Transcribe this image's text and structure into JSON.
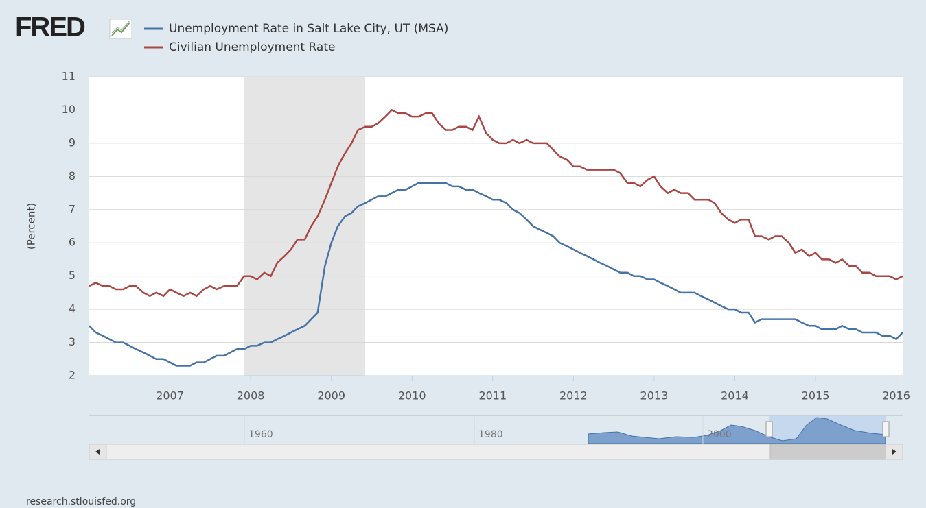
{
  "logo": "FRED",
  "source": "research.stlouisfed.org",
  "navigator": {
    "ticks": [
      1960,
      1980,
      2000
    ]
  },
  "chart_data": {
    "type": "line",
    "ylabel": "(Percent)",
    "x": [
      2006,
      2006.08,
      2006.17,
      2006.25,
      2006.33,
      2006.42,
      2006.5,
      2006.58,
      2006.67,
      2006.75,
      2006.83,
      2006.92,
      2007,
      2007.08,
      2007.17,
      2007.25,
      2007.33,
      2007.42,
      2007.5,
      2007.58,
      2007.67,
      2007.75,
      2007.83,
      2007.92,
      2008,
      2008.08,
      2008.17,
      2008.25,
      2008.33,
      2008.42,
      2008.5,
      2008.58,
      2008.67,
      2008.75,
      2008.83,
      2008.92,
      2009,
      2009.08,
      2009.17,
      2009.25,
      2009.33,
      2009.42,
      2009.5,
      2009.58,
      2009.67,
      2009.75,
      2009.83,
      2009.92,
      2010,
      2010.08,
      2010.17,
      2010.25,
      2010.33,
      2010.42,
      2010.5,
      2010.58,
      2010.67,
      2010.75,
      2010.83,
      2010.92,
      2011,
      2011.08,
      2011.17,
      2011.25,
      2011.33,
      2011.42,
      2011.5,
      2011.58,
      2011.67,
      2011.75,
      2011.83,
      2011.92,
      2012,
      2012.08,
      2012.17,
      2012.25,
      2012.33,
      2012.42,
      2012.5,
      2012.58,
      2012.67,
      2012.75,
      2012.83,
      2012.92,
      2013,
      2013.08,
      2013.17,
      2013.25,
      2013.33,
      2013.42,
      2013.5,
      2013.58,
      2013.67,
      2013.75,
      2013.83,
      2013.92,
      2014,
      2014.08,
      2014.17,
      2014.25,
      2014.33,
      2014.42,
      2014.5,
      2014.58,
      2014.67,
      2014.75,
      2014.83,
      2014.92,
      2015,
      2015.08,
      2015.17,
      2015.25,
      2015.33,
      2015.42,
      2015.5,
      2015.58,
      2015.67,
      2015.75,
      2015.83,
      2015.92,
      2016,
      2016.08
    ],
    "series": [
      {
        "name": "Unemployment Rate in Salt Lake City, UT (MSA)",
        "color": "#4572a7",
        "values": [
          3.5,
          3.3,
          3.2,
          3.1,
          3.0,
          3.0,
          2.9,
          2.8,
          2.7,
          2.6,
          2.5,
          2.5,
          2.4,
          2.3,
          2.3,
          2.3,
          2.4,
          2.4,
          2.5,
          2.6,
          2.6,
          2.7,
          2.8,
          2.8,
          2.9,
          2.9,
          3.0,
          3.0,
          3.1,
          3.2,
          3.3,
          3.4,
          3.5,
          3.7,
          3.9,
          5.3,
          6.0,
          6.5,
          6.8,
          6.9,
          7.1,
          7.2,
          7.3,
          7.4,
          7.4,
          7.5,
          7.6,
          7.6,
          7.7,
          7.8,
          7.8,
          7.8,
          7.8,
          7.8,
          7.7,
          7.7,
          7.6,
          7.6,
          7.5,
          7.4,
          7.3,
          7.3,
          7.2,
          7.0,
          6.9,
          6.7,
          6.5,
          6.4,
          6.3,
          6.2,
          6.0,
          5.9,
          5.8,
          5.7,
          5.6,
          5.5,
          5.4,
          5.3,
          5.2,
          5.1,
          5.1,
          5.0,
          5.0,
          4.9,
          4.9,
          4.8,
          4.7,
          4.6,
          4.5,
          4.5,
          4.5,
          4.4,
          4.3,
          4.2,
          4.1,
          4.0,
          4.0,
          3.9,
          3.9,
          3.6,
          3.7,
          3.7,
          3.7,
          3.7,
          3.7,
          3.7,
          3.6,
          3.5,
          3.5,
          3.4,
          3.4,
          3.4,
          3.5,
          3.4,
          3.4,
          3.3,
          3.3,
          3.3,
          3.2,
          3.2,
          3.1,
          3.3
        ]
      },
      {
        "name": "Civilian Unemployment Rate",
        "color": "#aa4643",
        "values": [
          4.7,
          4.8,
          4.7,
          4.7,
          4.6,
          4.6,
          4.7,
          4.7,
          4.5,
          4.4,
          4.5,
          4.4,
          4.6,
          4.5,
          4.4,
          4.5,
          4.4,
          4.6,
          4.7,
          4.6,
          4.7,
          4.7,
          4.7,
          5.0,
          5.0,
          4.9,
          5.1,
          5.0,
          5.4,
          5.6,
          5.8,
          6.1,
          6.1,
          6.5,
          6.8,
          7.3,
          7.8,
          8.3,
          8.7,
          9.0,
          9.4,
          9.5,
          9.5,
          9.6,
          9.8,
          10.0,
          9.9,
          9.9,
          9.8,
          9.8,
          9.9,
          9.9,
          9.6,
          9.4,
          9.4,
          9.5,
          9.5,
          9.4,
          9.8,
          9.3,
          9.1,
          9.0,
          9.0,
          9.1,
          9.0,
          9.1,
          9.0,
          9.0,
          9.0,
          8.8,
          8.6,
          8.5,
          8.3,
          8.3,
          8.2,
          8.2,
          8.2,
          8.2,
          8.2,
          8.1,
          7.8,
          7.8,
          7.7,
          7.9,
          8.0,
          7.7,
          7.5,
          7.6,
          7.5,
          7.5,
          7.3,
          7.3,
          7.3,
          7.2,
          6.9,
          6.7,
          6.6,
          6.7,
          6.7,
          6.2,
          6.2,
          6.1,
          6.2,
          6.2,
          6.0,
          5.7,
          5.8,
          5.6,
          5.7,
          5.5,
          5.5,
          5.4,
          5.5,
          5.3,
          5.3,
          5.1,
          5.1,
          5.0,
          5.0,
          5.0,
          4.9,
          5.0
        ]
      }
    ],
    "recessions": [
      {
        "start": 2007.92,
        "end": 2009.42
      }
    ],
    "xlim": [
      2006,
      2016.08
    ],
    "xticks": [
      2007,
      2008,
      2009,
      2010,
      2011,
      2012,
      2013,
      2014,
      2015,
      2016
    ],
    "ylim": [
      2,
      11
    ],
    "yticks": [
      2,
      3,
      4,
      5,
      6,
      7,
      8,
      9,
      10,
      11
    ],
    "grid": true
  }
}
